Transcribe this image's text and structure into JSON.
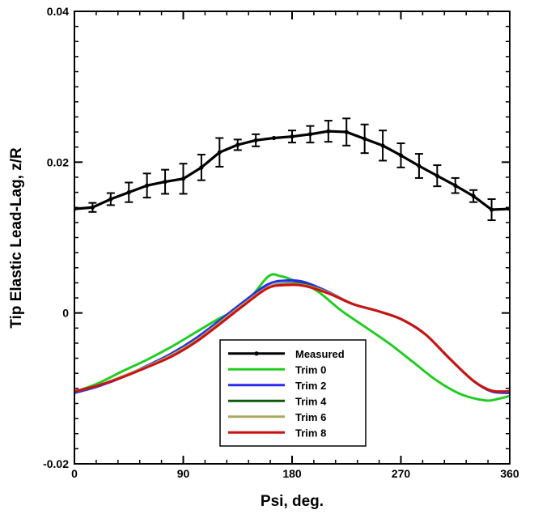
{
  "chart_data": {
    "type": "line",
    "xlabel": "Psi, deg.",
    "ylabel": "Tip Elastic Lead-Lag, z/R",
    "xlim": [
      0,
      360
    ],
    "ylim": [
      -0.02,
      0.04
    ],
    "xticks": [
      0,
      90,
      180,
      270,
      360
    ],
    "yticks": [
      -0.02,
      0,
      0.02,
      0.04
    ],
    "xtick_labels": [
      "0",
      "90",
      "180",
      "270",
      "360"
    ],
    "ytick_labels": [
      "-0.02",
      "0",
      "0.02",
      "0.04"
    ],
    "grid": false,
    "legend_position": "bottom-center",
    "series": [
      {
        "name": "Measured",
        "color": "#000000",
        "markers": true,
        "x": [
          0,
          15,
          30,
          45,
          60,
          75,
          90,
          105,
          120,
          135,
          150,
          165,
          180,
          195,
          210,
          225,
          240,
          255,
          270,
          285,
          300,
          315,
          330,
          345,
          360
        ],
        "y": [
          0.0138,
          0.014,
          0.0151,
          0.016,
          0.0169,
          0.0174,
          0.0178,
          0.0193,
          0.0213,
          0.0223,
          0.0229,
          0.0232,
          0.0234,
          0.0237,
          0.0241,
          0.024,
          0.0231,
          0.0222,
          0.0209,
          0.0195,
          0.0182,
          0.0169,
          0.0155,
          0.0137,
          0.0138
        ],
        "error": [
          0.0,
          0.0006,
          0.0008,
          0.0013,
          0.0016,
          0.0016,
          0.002,
          0.0017,
          0.0019,
          0.0007,
          0.0008,
          0.0,
          0.0008,
          0.0011,
          0.0014,
          0.0018,
          0.0019,
          0.002,
          0.0016,
          0.0016,
          0.0014,
          0.001,
          0.0008,
          0.0014,
          0.0
        ]
      },
      {
        "name": "Trim 0",
        "color": "#22cc22",
        "x": [
          0,
          20,
          40,
          60,
          80,
          100,
          120,
          140,
          160,
          170,
          180,
          200,
          220,
          240,
          260,
          280,
          300,
          320,
          340,
          350,
          360
        ],
        "y": [
          -0.0105,
          -0.0093,
          -0.0077,
          -0.0062,
          -0.0045,
          -0.0026,
          -0.0007,
          0.001,
          0.0048,
          0.0049,
          0.0044,
          0.003,
          0.0004,
          -0.0018,
          -0.004,
          -0.0065,
          -0.009,
          -0.0108,
          -0.0116,
          -0.0114,
          -0.011
        ]
      },
      {
        "name": "Trim 2",
        "color": "#2a2aee",
        "x": [
          0,
          20,
          40,
          60,
          80,
          100,
          120,
          140,
          160,
          175,
          190,
          210,
          230,
          250,
          270,
          290,
          310,
          330,
          345,
          360
        ],
        "y": [
          -0.0106,
          -0.0097,
          -0.0085,
          -0.007,
          -0.0054,
          -0.0034,
          -0.001,
          0.0015,
          0.0038,
          0.0043,
          0.0041,
          0.0028,
          0.0012,
          0.0003,
          -0.0008,
          -0.0028,
          -0.006,
          -0.009,
          -0.0104,
          -0.0106
        ]
      },
      {
        "name": "Trim 4",
        "color": "#0a5a0a",
        "x": [
          0,
          20,
          40,
          60,
          80,
          100,
          120,
          140,
          160,
          175,
          190,
          210,
          230,
          250,
          270,
          290,
          310,
          330,
          345,
          360
        ],
        "y": [
          -0.0104,
          -0.0096,
          -0.0084,
          -0.0071,
          -0.0056,
          -0.0037,
          -0.0013,
          0.0012,
          0.0034,
          0.0039,
          0.0038,
          0.0027,
          0.0012,
          0.0003,
          -0.0008,
          -0.0028,
          -0.006,
          -0.009,
          -0.0103,
          -0.0104
        ]
      },
      {
        "name": "Trim 6",
        "color": "#a8a860",
        "x": [
          0,
          20,
          40,
          60,
          80,
          100,
          120,
          140,
          160,
          175,
          190,
          210,
          230,
          250,
          270,
          290,
          310,
          330,
          345,
          360
        ],
        "y": [
          -0.0104,
          -0.0096,
          -0.0084,
          -0.0071,
          -0.0056,
          -0.0037,
          -0.0013,
          0.0012,
          0.0034,
          0.0038,
          0.0037,
          0.0027,
          0.0012,
          0.0003,
          -0.0008,
          -0.0028,
          -0.006,
          -0.009,
          -0.0103,
          -0.0104
        ]
      },
      {
        "name": "Trim 8",
        "color": "#cc1111",
        "x": [
          0,
          20,
          40,
          60,
          80,
          100,
          120,
          140,
          160,
          175,
          190,
          210,
          230,
          250,
          270,
          290,
          310,
          330,
          345,
          360
        ],
        "y": [
          -0.0104,
          -0.0096,
          -0.0085,
          -0.0072,
          -0.0058,
          -0.0039,
          -0.0015,
          0.001,
          0.0033,
          0.0037,
          0.0036,
          0.0026,
          0.0012,
          0.0003,
          -0.0008,
          -0.0028,
          -0.006,
          -0.009,
          -0.0103,
          -0.0104
        ]
      }
    ]
  }
}
